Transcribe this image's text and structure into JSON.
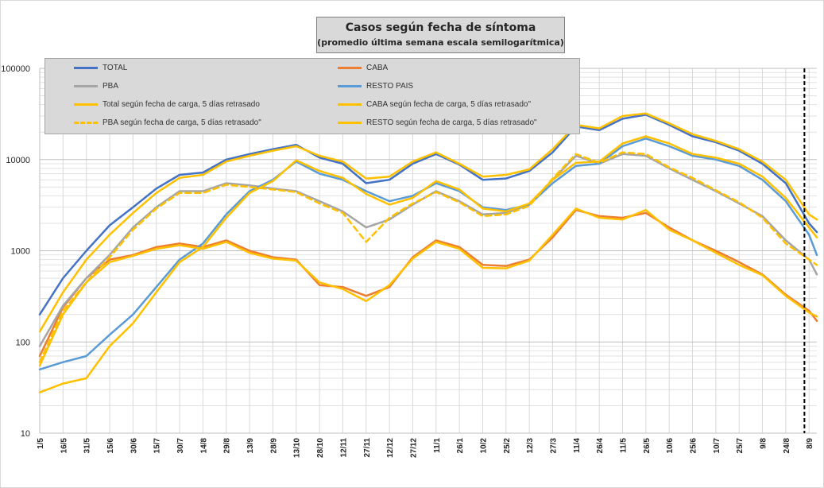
{
  "chart_data": {
    "type": "line",
    "title": "Casos según fecha de síntoma",
    "subtitle": "(promedio última semana escala semilogarítmica)",
    "y_scale": "log",
    "ylim": [
      10,
      100000
    ],
    "y_ticks": [
      "10",
      "100",
      "1000",
      "10000",
      "100000"
    ],
    "x_tick_labels": [
      "1/5",
      "16/5",
      "31/5",
      "15/6",
      "30/6",
      "15/7",
      "30/7",
      "14/8",
      "29/8",
      "13/9",
      "28/9",
      "13/10",
      "28/10",
      "12/11",
      "27/11",
      "12/12",
      "27/12",
      "11/1",
      "26/1",
      "10/2",
      "25/2",
      "12/3",
      "27/3",
      "11/4",
      "26/4",
      "11/5",
      "26/5",
      "10/6",
      "25/6",
      "10/7",
      "25/7",
      "9/8",
      "24/8",
      "8/9"
    ],
    "x_start": "1/5",
    "x_end": "13/9",
    "vertical_marker": "5/9",
    "grid": true,
    "legend_position": "top-left",
    "series": [
      {
        "name": "TOTAL",
        "color": "#4472c4",
        "dashed": false,
        "points": [
          [
            "1/5",
            200
          ],
          [
            "16/5",
            500
          ],
          [
            "31/5",
            1000
          ],
          [
            "15/6",
            1900
          ],
          [
            "30/6",
            3000
          ],
          [
            "15/7",
            4800
          ],
          [
            "30/7",
            6800
          ],
          [
            "14/8",
            7200
          ],
          [
            "29/8",
            10000
          ],
          [
            "13/9",
            11500
          ],
          [
            "28/9",
            13000
          ],
          [
            "13/10",
            14500
          ],
          [
            "28/10",
            10500
          ],
          [
            "12/11",
            9000
          ],
          [
            "27/11",
            5500
          ],
          [
            "12/12",
            6000
          ],
          [
            "27/12",
            9000
          ],
          [
            "11/1",
            11500
          ],
          [
            "26/1",
            8800
          ],
          [
            "10/2",
            6000
          ],
          [
            "25/2",
            6200
          ],
          [
            "12/3",
            7500
          ],
          [
            "27/3",
            12000
          ],
          [
            "11/4",
            23000
          ],
          [
            "26/4",
            21000
          ],
          [
            "11/5",
            28000
          ],
          [
            "26/5",
            31000
          ],
          [
            "10/6",
            24000
          ],
          [
            "25/6",
            18000
          ],
          [
            "10/7",
            15500
          ],
          [
            "25/7",
            12500
          ],
          [
            "9/8",
            9000
          ],
          [
            "24/8",
            5500
          ],
          [
            "8/9",
            2000
          ],
          [
            "13/9",
            1600
          ]
        ]
      },
      {
        "name": "CABA",
        "color": "#ed7d31",
        "dashed": false,
        "points": [
          [
            "1/5",
            70
          ],
          [
            "16/5",
            240
          ],
          [
            "31/5",
            500
          ],
          [
            "15/6",
            800
          ],
          [
            "30/6",
            900
          ],
          [
            "15/7",
            1100
          ],
          [
            "30/7",
            1200
          ],
          [
            "14/8",
            1100
          ],
          [
            "29/8",
            1300
          ],
          [
            "13/9",
            1000
          ],
          [
            "28/9",
            850
          ],
          [
            "13/10",
            800
          ],
          [
            "28/10",
            420
          ],
          [
            "12/11",
            400
          ],
          [
            "27/11",
            320
          ],
          [
            "12/12",
            400
          ],
          [
            "27/12",
            850
          ],
          [
            "11/1",
            1300
          ],
          [
            "26/1",
            1100
          ],
          [
            "10/2",
            700
          ],
          [
            "25/2",
            680
          ],
          [
            "12/3",
            800
          ],
          [
            "27/3",
            1400
          ],
          [
            "11/4",
            2800
          ],
          [
            "26/4",
            2400
          ],
          [
            "11/5",
            2300
          ],
          [
            "26/5",
            2600
          ],
          [
            "10/6",
            1800
          ],
          [
            "25/6",
            1300
          ],
          [
            "10/7",
            1000
          ],
          [
            "25/7",
            750
          ],
          [
            "9/8",
            550
          ],
          [
            "24/8",
            330
          ],
          [
            "8/9",
            220
          ],
          [
            "13/9",
            170
          ]
        ]
      },
      {
        "name": "PBA",
        "color": "#a5a5a5",
        "dashed": false,
        "points": [
          [
            "1/5",
            90
          ],
          [
            "16/5",
            250
          ],
          [
            "31/5",
            500
          ],
          [
            "15/6",
            900
          ],
          [
            "30/6",
            1800
          ],
          [
            "15/7",
            3000
          ],
          [
            "30/7",
            4500
          ],
          [
            "14/8",
            4500
          ],
          [
            "29/8",
            5500
          ],
          [
            "13/9",
            5200
          ],
          [
            "28/9",
            4800
          ],
          [
            "13/10",
            4500
          ],
          [
            "28/10",
            3500
          ],
          [
            "12/11",
            2700
          ],
          [
            "27/11",
            1800
          ],
          [
            "12/12",
            2200
          ],
          [
            "27/12",
            3200
          ],
          [
            "11/1",
            4500
          ],
          [
            "26/1",
            3500
          ],
          [
            "10/2",
            2500
          ],
          [
            "25/2",
            2600
          ],
          [
            "12/3",
            3200
          ],
          [
            "27/3",
            6000
          ],
          [
            "11/4",
            11000
          ],
          [
            "26/4",
            9000
          ],
          [
            "11/5",
            11500
          ],
          [
            "26/5",
            11000
          ],
          [
            "10/6",
            8000
          ],
          [
            "25/6",
            6000
          ],
          [
            "10/7",
            4500
          ],
          [
            "25/7",
            3300
          ],
          [
            "9/8",
            2400
          ],
          [
            "24/8",
            1300
          ],
          [
            "8/9",
            800
          ],
          [
            "13/9",
            550
          ]
        ]
      },
      {
        "name": "RESTO PAIS",
        "color": "#5b9bd5",
        "dashed": false,
        "points": [
          [
            "1/5",
            50
          ],
          [
            "16/5",
            60
          ],
          [
            "31/5",
            70
          ],
          [
            "15/6",
            120
          ],
          [
            "30/6",
            200
          ],
          [
            "15/7",
            400
          ],
          [
            "30/7",
            800
          ],
          [
            "14/8",
            1200
          ],
          [
            "29/8",
            2500
          ],
          [
            "13/9",
            4500
          ],
          [
            "28/9",
            6000
          ],
          [
            "13/10",
            9500
          ],
          [
            "28/10",
            7000
          ],
          [
            "12/11",
            6000
          ],
          [
            "27/11",
            4500
          ],
          [
            "12/12",
            3500
          ],
          [
            "27/12",
            4000
          ],
          [
            "11/1",
            5500
          ],
          [
            "26/1",
            4500
          ],
          [
            "10/2",
            3000
          ],
          [
            "25/2",
            2800
          ],
          [
            "12/3",
            3200
          ],
          [
            "27/3",
            5500
          ],
          [
            "11/4",
            8500
          ],
          [
            "26/4",
            9000
          ],
          [
            "11/5",
            14000
          ],
          [
            "26/5",
            17000
          ],
          [
            "10/6",
            14000
          ],
          [
            "25/6",
            11000
          ],
          [
            "10/7",
            10000
          ],
          [
            "25/7",
            8500
          ],
          [
            "9/8",
            6000
          ],
          [
            "24/8",
            3500
          ],
          [
            "8/9",
            1500
          ],
          [
            "13/9",
            900
          ]
        ]
      },
      {
        "name": "Total según fecha de carga, 5 días retrasado",
        "color": "#ffc000",
        "dashed": false,
        "points": [
          [
            "1/5",
            130
          ],
          [
            "16/5",
            350
          ],
          [
            "31/5",
            800
          ],
          [
            "15/6",
            1500
          ],
          [
            "30/6",
            2600
          ],
          [
            "15/7",
            4300
          ],
          [
            "30/7",
            6300
          ],
          [
            "14/8",
            6800
          ],
          [
            "29/8",
            9500
          ],
          [
            "13/9",
            11000
          ],
          [
            "28/9",
            12500
          ],
          [
            "13/10",
            14000
          ],
          [
            "28/10",
            11000
          ],
          [
            "12/11",
            9500
          ],
          [
            "27/11",
            6200
          ],
          [
            "12/12",
            6500
          ],
          [
            "27/12",
            9500
          ],
          [
            "11/1",
            12000
          ],
          [
            "26/1",
            9000
          ],
          [
            "10/2",
            6500
          ],
          [
            "25/2",
            6800
          ],
          [
            "12/3",
            7800
          ],
          [
            "27/3",
            13000
          ],
          [
            "11/4",
            24000
          ],
          [
            "26/4",
            22000
          ],
          [
            "11/5",
            30000
          ],
          [
            "26/5",
            32000
          ],
          [
            "10/6",
            25000
          ],
          [
            "25/6",
            19000
          ],
          [
            "10/7",
            16000
          ],
          [
            "25/7",
            13000
          ],
          [
            "9/8",
            9500
          ],
          [
            "24/8",
            6000
          ],
          [
            "8/9",
            2500
          ],
          [
            "13/9",
            2200
          ]
        ]
      },
      {
        "name": "CABA según fecha de carga, 5 días retrasado\"",
        "color": "#ffc000",
        "dashed": false,
        "points": [
          [
            "1/5",
            55
          ],
          [
            "16/5",
            200
          ],
          [
            "31/5",
            450
          ],
          [
            "15/6",
            750
          ],
          [
            "30/6",
            880
          ],
          [
            "15/7",
            1050
          ],
          [
            "30/7",
            1150
          ],
          [
            "14/8",
            1050
          ],
          [
            "29/8",
            1250
          ],
          [
            "13/9",
            950
          ],
          [
            "28/9",
            820
          ],
          [
            "13/10",
            780
          ],
          [
            "28/10",
            450
          ],
          [
            "12/11",
            380
          ],
          [
            "27/11",
            280
          ],
          [
            "12/12",
            420
          ],
          [
            "27/12",
            820
          ],
          [
            "11/1",
            1250
          ],
          [
            "26/1",
            1050
          ],
          [
            "10/2",
            650
          ],
          [
            "25/2",
            640
          ],
          [
            "12/3",
            780
          ],
          [
            "27/3",
            1500
          ],
          [
            "11/4",
            2900
          ],
          [
            "26/4",
            2300
          ],
          [
            "11/5",
            2200
          ],
          [
            "26/5",
            2800
          ],
          [
            "10/6",
            1700
          ],
          [
            "25/6",
            1300
          ],
          [
            "10/7",
            950
          ],
          [
            "25/7",
            700
          ],
          [
            "9/8",
            540
          ],
          [
            "24/8",
            320
          ],
          [
            "8/9",
            210
          ],
          [
            "13/9",
            190
          ]
        ]
      },
      {
        "name": "PBA según fecha de carga, 5 días retrasado\"",
        "color": "#ffc000",
        "dashed": true,
        "points": [
          [
            "1/5",
            60
          ],
          [
            "16/5",
            220
          ],
          [
            "31/5",
            450
          ],
          [
            "15/6",
            850
          ],
          [
            "30/6",
            1700
          ],
          [
            "15/7",
            2900
          ],
          [
            "30/7",
            4300
          ],
          [
            "14/8",
            4300
          ],
          [
            "29/8",
            5300
          ],
          [
            "13/9",
            5000
          ],
          [
            "28/9",
            4700
          ],
          [
            "13/10",
            4400
          ],
          [
            "28/10",
            3300
          ],
          [
            "12/11",
            2600
          ],
          [
            "27/11",
            1250
          ],
          [
            "12/12",
            2300
          ],
          [
            "27/12",
            3300
          ],
          [
            "11/1",
            4400
          ],
          [
            "26/1",
            3400
          ],
          [
            "10/2",
            2400
          ],
          [
            "25/2",
            2500
          ],
          [
            "12/3",
            3100
          ],
          [
            "27/3",
            6200
          ],
          [
            "11/4",
            11500
          ],
          [
            "26/4",
            9200
          ],
          [
            "11/5",
            12000
          ],
          [
            "26/5",
            11500
          ],
          [
            "10/6",
            8200
          ],
          [
            "25/6",
            6300
          ],
          [
            "10/7",
            4600
          ],
          [
            "25/7",
            3400
          ],
          [
            "9/8",
            2300
          ],
          [
            "24/8",
            1200
          ],
          [
            "8/9",
            800
          ],
          [
            "13/9",
            700
          ]
        ]
      },
      {
        "name": "RESTO según fecha de carga, 5 días retrasado\"",
        "color": "#ffc000",
        "dashed": false,
        "points": [
          [
            "1/5",
            28
          ],
          [
            "16/5",
            35
          ],
          [
            "31/5",
            40
          ],
          [
            "15/6",
            90
          ],
          [
            "30/6",
            160
          ],
          [
            "15/7",
            350
          ],
          [
            "30/7",
            750
          ],
          [
            "14/8",
            1100
          ],
          [
            "29/8",
            2300
          ],
          [
            "13/9",
            4300
          ],
          [
            "28/9",
            5800
          ],
          [
            "13/10",
            9800
          ],
          [
            "28/10",
            7500
          ],
          [
            "12/11",
            6300
          ],
          [
            "27/11",
            4200
          ],
          [
            "12/12",
            3200
          ],
          [
            "27/12",
            3800
          ],
          [
            "11/1",
            5800
          ],
          [
            "26/1",
            4700
          ],
          [
            "10/2",
            2900
          ],
          [
            "25/2",
            2700
          ],
          [
            "12/3",
            3300
          ],
          [
            "27/3",
            6000
          ],
          [
            "11/4",
            9200
          ],
          [
            "26/4",
            9500
          ],
          [
            "11/5",
            15000
          ],
          [
            "26/5",
            18000
          ],
          [
            "10/6",
            15000
          ],
          [
            "25/6",
            11500
          ],
          [
            "10/7",
            10500
          ],
          [
            "25/7",
            9000
          ],
          [
            "9/8",
            6500
          ],
          [
            "24/8",
            3800
          ],
          [
            "8/9",
            1800
          ],
          [
            "13/9",
            1400
          ]
        ]
      }
    ]
  }
}
